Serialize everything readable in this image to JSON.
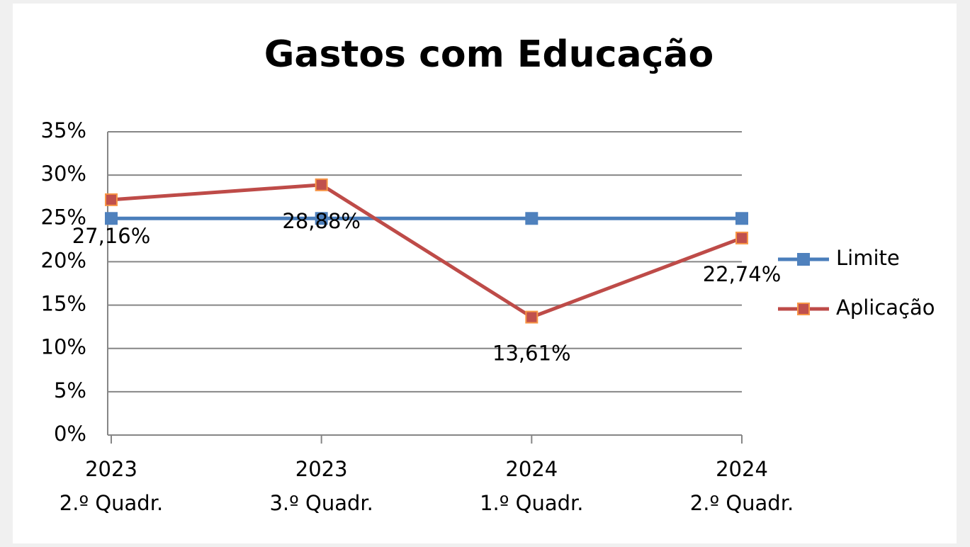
{
  "chart_data": {
    "type": "line",
    "title": "Gastos com Educação",
    "categories": [
      [
        "2023",
        "2.º Quadr."
      ],
      [
        "2023",
        "3.º Quadr."
      ],
      [
        "2024",
        "1.º Quadr."
      ],
      [
        "2024",
        "2.º Quadr."
      ]
    ],
    "series": [
      {
        "name": "Limite",
        "color": "#4a7ebb",
        "marker_color": "#4f81bd",
        "values": [
          25,
          25,
          25,
          25
        ]
      },
      {
        "name": "Aplicação",
        "color": "#be4b48",
        "marker_color": "#c0504d",
        "marker_edge": "#f79646",
        "values": [
          27.16,
          28.88,
          13.61,
          22.74
        ],
        "value_labels": [
          "27,16%",
          "28,88%",
          "13,61%",
          "22,74%"
        ]
      }
    ],
    "ylim": [
      0,
      35
    ],
    "yticks": [
      {
        "value": 0,
        "label": "0%"
      },
      {
        "value": 5,
        "label": "5%"
      },
      {
        "value": 10,
        "label": "10%"
      },
      {
        "value": 15,
        "label": "15%"
      },
      {
        "value": 20,
        "label": "20%"
      },
      {
        "value": 25,
        "label": "25%"
      },
      {
        "value": 30,
        "label": "30%"
      },
      {
        "value": 35,
        "label": "35%"
      }
    ],
    "grid": true,
    "legend": "right"
  }
}
